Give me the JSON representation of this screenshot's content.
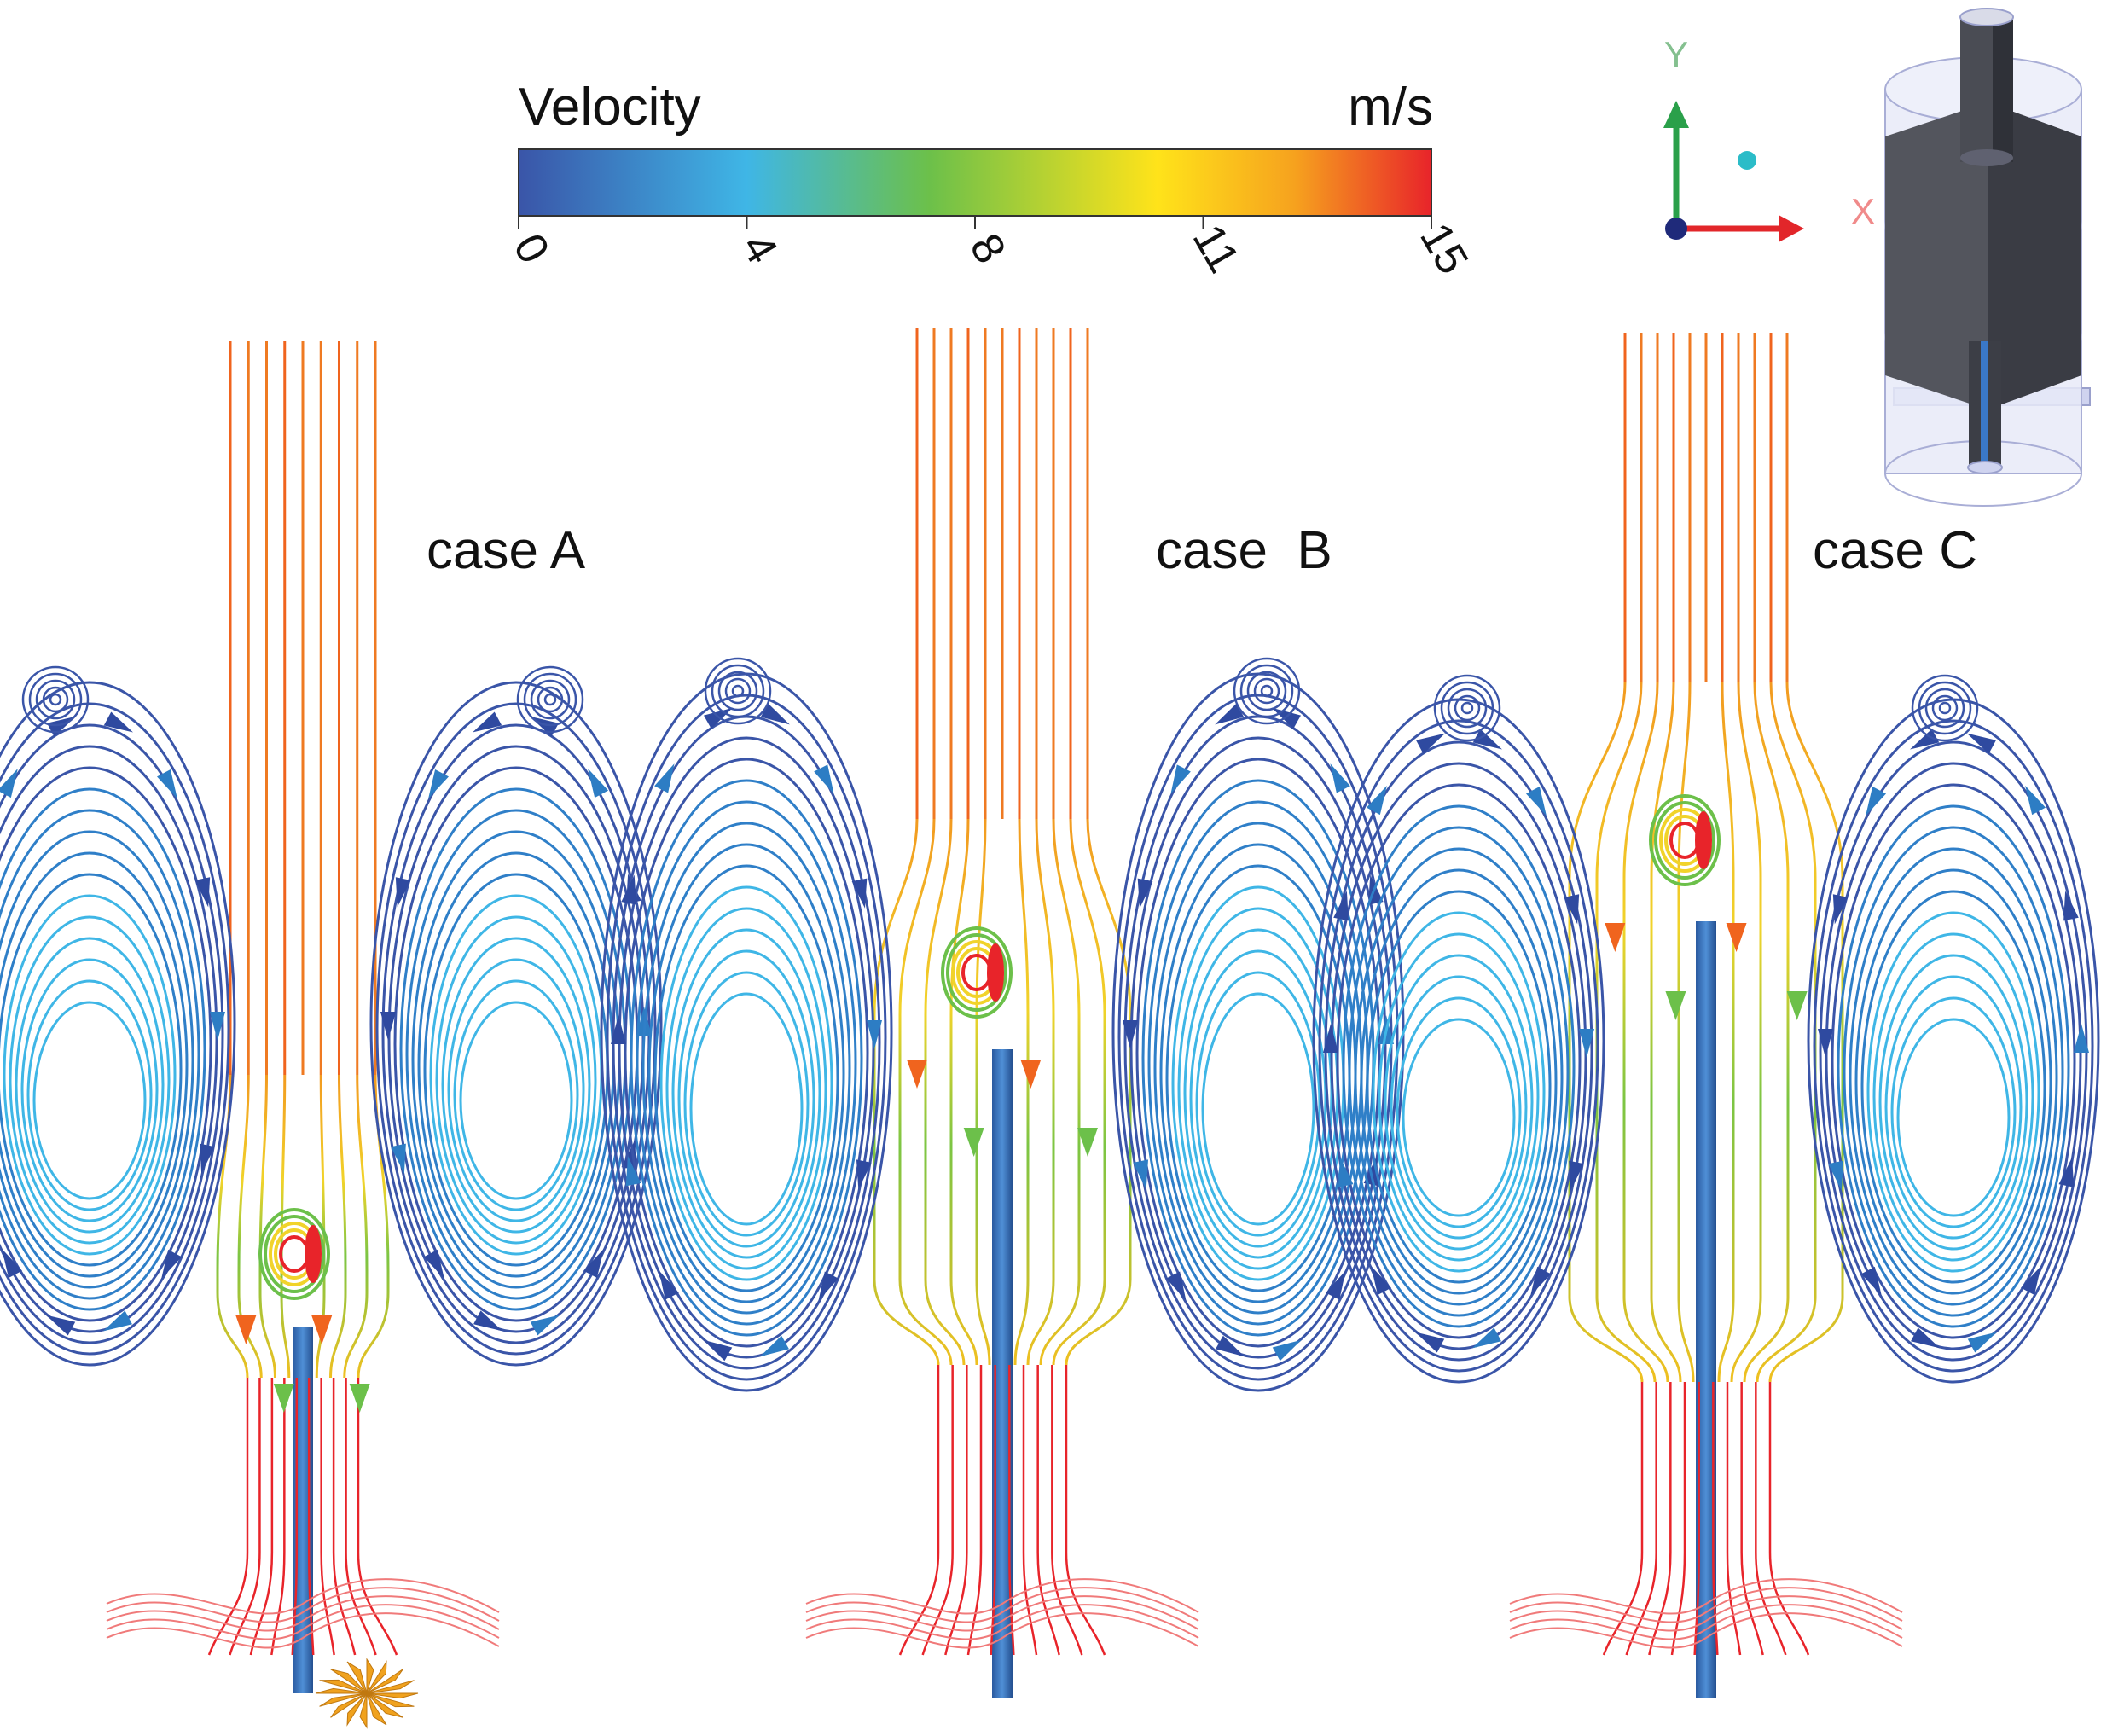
{
  "legend": {
    "title": "Velocity",
    "unit": "m/s",
    "ticks": [
      "0",
      "4",
      "8",
      "11",
      "15"
    ],
    "gradient": [
      "#3a55a8",
      "#3fb6e6",
      "#6cc04a",
      "#ffe31a",
      "#f6a21e",
      "#e8242a"
    ]
  },
  "axes": {
    "y_label": "Y",
    "x_label": "X"
  },
  "cases": [
    {
      "label": "case A"
    },
    {
      "label": "case  B"
    },
    {
      "label": "case C"
    }
  ]
}
